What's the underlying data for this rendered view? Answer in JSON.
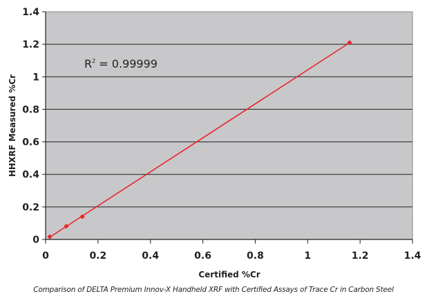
{
  "chart_data": {
    "type": "scatter",
    "title": "",
    "xlabel": "Certified %Cr",
    "ylabel": "HHXRF Measured %Cr",
    "xlim": [
      0,
      1.4
    ],
    "ylim": [
      0,
      1.4
    ],
    "x_ticks": [
      "0",
      "0.2",
      "0.4",
      "0.6",
      "0.8",
      "1",
      "1.2",
      "1.4"
    ],
    "y_ticks": [
      "0",
      "0.2",
      "0.4",
      "0.6",
      "0.8",
      "1",
      "1.2",
      "1.4"
    ],
    "grid": "horizontal",
    "legend": null,
    "series": [
      {
        "name": "Cr",
        "x": [
          0.016,
          0.079,
          0.14,
          1.16
        ],
        "y": [
          0.017,
          0.081,
          0.14,
          1.21
        ],
        "color": "#e8262b",
        "marker": "diamond",
        "trendline": "linear"
      }
    ],
    "annotations": [
      {
        "text": "R² = 0.99999",
        "x": 0.15,
        "y": 1.09
      }
    ],
    "caption": "Comparison of DELTA Premium Innov-X Handheld XRF with Certified Assays of Trace Cr in Carbon Steel"
  },
  "labels": {
    "r2_prefix": "R",
    "r2_sup": "2",
    "r2_value": " = 0.99999",
    "xlabel": "Certified %Cr",
    "ylabel": "HHXRF Measured %Cr",
    "caption": "Comparison of DELTA Premium Innov-X Handheld XRF with Certified Assays of Trace Cr in Carbon Steel"
  },
  "colors": {
    "plot_bg": "#c8c8ca",
    "series": "#e8262b",
    "grid": "#1e1e1e",
    "text": "#231f20"
  }
}
